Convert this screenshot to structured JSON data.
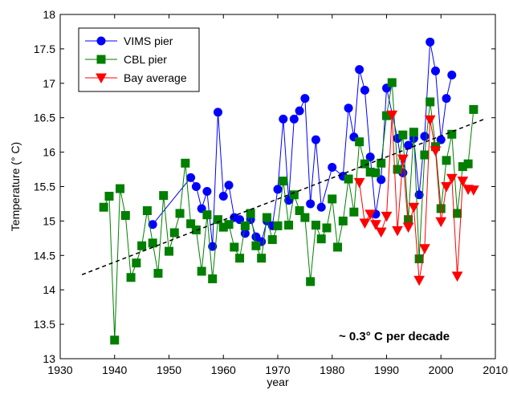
{
  "chart_data": {
    "type": "line",
    "xlabel": "year",
    "ylabel": "Temperature (° C)",
    "xlim": [
      1930,
      2010
    ],
    "ylim": [
      13,
      18
    ],
    "xticks": [
      1930,
      1940,
      1950,
      1960,
      1970,
      1980,
      1990,
      2000,
      2010
    ],
    "yticks": [
      13,
      13.5,
      14,
      14.5,
      15,
      15.5,
      16,
      16.5,
      17,
      17.5,
      18
    ],
    "grid": false,
    "legend_position": "top-left",
    "annotation": "~ 0.3° C per decade",
    "series": [
      {
        "name": "VIMS pier",
        "color": "#0000ff",
        "marker": "circle",
        "points": [
          [
            1947,
            14.95
          ],
          [
            1954,
            15.63
          ],
          [
            1955,
            15.5
          ],
          [
            1956,
            15.18
          ],
          [
            1957,
            15.43
          ],
          [
            1958,
            14.63
          ],
          [
            1959,
            16.58
          ],
          [
            1960,
            15.36
          ],
          [
            1961,
            15.52
          ],
          [
            1962,
            15.05
          ],
          [
            1963,
            15.02
          ],
          [
            1964,
            14.82
          ],
          [
            1965,
            15.02
          ],
          [
            1966,
            14.77
          ],
          [
            1967,
            14.7
          ],
          [
            1968,
            15.0
          ],
          [
            1969,
            14.93
          ],
          [
            1970,
            15.46
          ],
          [
            1971,
            16.48
          ],
          [
            1972,
            15.3
          ],
          [
            1973,
            16.48
          ],
          [
            1974,
            16.6
          ],
          [
            1975,
            16.78
          ],
          [
            1976,
            15.25
          ],
          [
            1977,
            16.18
          ],
          [
            1978,
            15.2
          ],
          [
            1980,
            15.78
          ],
          [
            1982,
            15.65
          ],
          [
            1983,
            16.64
          ],
          [
            1984,
            16.22
          ],
          [
            1985,
            17.2
          ],
          [
            1986,
            16.9
          ],
          [
            1987,
            15.93
          ],
          [
            1988,
            15.1
          ],
          [
            1989,
            15.6
          ],
          [
            1990,
            16.93
          ],
          [
            1992,
            16.2
          ],
          [
            1993,
            15.7
          ],
          [
            1994,
            16.1
          ],
          [
            1995,
            16.2
          ],
          [
            1996,
            15.38
          ],
          [
            1997,
            16.23
          ],
          [
            1998,
            17.6
          ],
          [
            1999,
            17.18
          ],
          [
            2000,
            16.18
          ],
          [
            2001,
            16.78
          ],
          [
            2002,
            17.12
          ]
        ]
      },
      {
        "name": "CBL pier",
        "color": "#007f00",
        "marker": "square",
        "points": [
          [
            1938,
            15.2
          ],
          [
            1939,
            15.36
          ],
          [
            1940,
            13.27
          ],
          [
            1941,
            15.47
          ],
          [
            1942,
            15.08
          ],
          [
            1943,
            14.18
          ],
          [
            1944,
            14.39
          ],
          [
            1945,
            14.64
          ],
          [
            1946,
            15.15
          ],
          [
            1947,
            14.68
          ],
          [
            1948,
            14.24
          ],
          [
            1949,
            15.37
          ],
          [
            1950,
            14.56
          ],
          [
            1951,
            14.83
          ],
          [
            1952,
            15.11
          ],
          [
            1953,
            15.84
          ],
          [
            1954,
            14.96
          ],
          [
            1955,
            14.87
          ],
          [
            1956,
            14.27
          ],
          [
            1957,
            15.09
          ],
          [
            1958,
            14.16
          ],
          [
            1959,
            15.02
          ],
          [
            1960,
            14.91
          ],
          [
            1961,
            14.95
          ],
          [
            1962,
            14.62
          ],
          [
            1963,
            14.46
          ],
          [
            1964,
            14.93
          ],
          [
            1965,
            15.11
          ],
          [
            1966,
            14.64
          ],
          [
            1967,
            14.46
          ],
          [
            1968,
            15.05
          ],
          [
            1969,
            14.73
          ],
          [
            1970,
            14.93
          ],
          [
            1971,
            15.58
          ],
          [
            1972,
            14.94
          ],
          [
            1973,
            15.38
          ],
          [
            1974,
            15.15
          ],
          [
            1975,
            15.05
          ],
          [
            1976,
            14.12
          ],
          [
            1977,
            14.94
          ],
          [
            1978,
            14.74
          ],
          [
            1979,
            14.9
          ],
          [
            1980,
            15.32
          ],
          [
            1981,
            14.62
          ],
          [
            1982,
            15.0
          ],
          [
            1983,
            15.61
          ],
          [
            1984,
            15.13
          ],
          [
            1985,
            16.15
          ],
          [
            1986,
            15.83
          ],
          [
            1987,
            15.71
          ],
          [
            1988,
            15.7
          ],
          [
            1989,
            15.84
          ],
          [
            1990,
            16.53
          ],
          [
            1991,
            17.01
          ],
          [
            1992,
            15.75
          ],
          [
            1993,
            16.25
          ],
          [
            1994,
            15.02
          ],
          [
            1995,
            16.29
          ],
          [
            1996,
            14.45
          ],
          [
            1997,
            15.96
          ],
          [
            1998,
            16.73
          ],
          [
            1999,
            16.08
          ],
          [
            2000,
            15.18
          ],
          [
            2001,
            15.88
          ],
          [
            2002,
            16.26
          ],
          [
            2003,
            15.11
          ],
          [
            2004,
            15.79
          ],
          [
            2005,
            15.83
          ],
          [
            2006,
            16.62
          ]
        ]
      },
      {
        "name": "Bay average",
        "color": "#ff0000",
        "marker": "triangle-down",
        "points": [
          [
            1985,
            15.56
          ],
          [
            1986,
            14.97
          ],
          [
            1987,
            15.1
          ],
          [
            1988,
            14.95
          ],
          [
            1989,
            14.84
          ],
          [
            1990,
            15.07
          ],
          [
            1991,
            16.54
          ],
          [
            1992,
            14.86
          ],
          [
            1993,
            15.9
          ],
          [
            1994,
            14.91
          ],
          [
            1995,
            15.2
          ],
          [
            1996,
            14.14
          ],
          [
            1997,
            14.6
          ],
          [
            1998,
            16.47
          ],
          [
            1999,
            16.02
          ],
          [
            2000,
            14.99
          ],
          [
            2001,
            15.5
          ],
          [
            2002,
            15.62
          ],
          [
            2003,
            14.2
          ],
          [
            2004,
            15.58
          ],
          [
            2005,
            15.46
          ],
          [
            2006,
            15.45
          ]
        ]
      },
      {
        "name": "",
        "color": "#000000",
        "style": "dashed",
        "points": [
          [
            1934,
            14.22
          ],
          [
            2008,
            16.48
          ]
        ]
      }
    ]
  }
}
